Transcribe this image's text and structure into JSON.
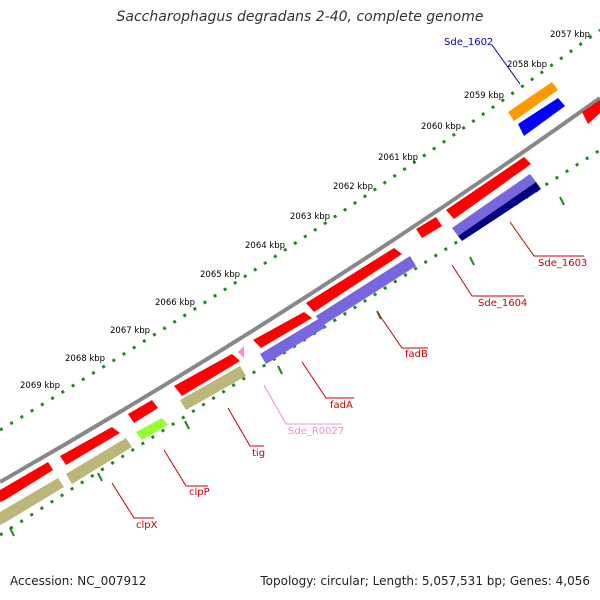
{
  "title": "Saccharophagus degradans 2-40, complete genome",
  "footer": {
    "accession": "Accession: NC_007912",
    "summary": "Topology: circular; Length: 5,057,531 bp; Genes: 4,056"
  },
  "scale_ticks": [
    {
      "label": "2057 kbp"
    },
    {
      "label": "2058 kbp"
    },
    {
      "label": "2059 kbp"
    },
    {
      "label": "2060 kbp"
    },
    {
      "label": "2061 kbp"
    },
    {
      "label": "2062 kbp"
    },
    {
      "label": "2063 kbp"
    },
    {
      "label": "2064 kbp"
    },
    {
      "label": "2065 kbp"
    },
    {
      "label": "2066 kbp"
    },
    {
      "label": "2067 kbp"
    },
    {
      "label": "2068 kbp"
    },
    {
      "label": "2069 kbp"
    }
  ],
  "gene_labels": [
    {
      "name": "Sde_1602",
      "color": "#0000cc"
    },
    {
      "name": "Sde_1603",
      "color": "#cc0000"
    },
    {
      "name": "Sde_1604",
      "color": "#cc0000"
    },
    {
      "name": "fadB",
      "color": "#cc0000"
    },
    {
      "name": "fadA",
      "color": "#cc0000"
    },
    {
      "name": "Sde_R0027",
      "color": "#ff88cc"
    },
    {
      "name": "tig",
      "color": "#cc0000"
    },
    {
      "name": "clpP",
      "color": "#cc0000"
    },
    {
      "name": "clpX",
      "color": "#cc0000"
    }
  ],
  "colors": {
    "cds_forward": "#ff0000",
    "cds_reverse_outer": "#ff0000",
    "blue_gene": "#0000ff",
    "orange_gene": "#ff9900",
    "purple_gene": "#7766dd",
    "navy_gene": "#000080",
    "olive_gene": "#bbb77a",
    "lime_gene": "#99ff33",
    "rrna_pink": "#ff88cc",
    "backbone": "#888888",
    "tick_green": "#228822"
  }
}
